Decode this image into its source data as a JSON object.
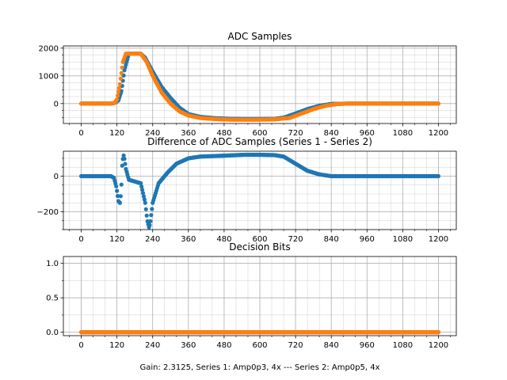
{
  "figure": {
    "caption": "Gain: 2.3125, Series 1: Amp0p3, 4x --- Series 2: Amp0p5, 4x"
  },
  "colors": {
    "series1": "#1f77b4",
    "series2": "#ff7f0e",
    "grid": "#b0b0b0"
  },
  "chart_data": [
    {
      "type": "scatter",
      "title": "ADC Samples",
      "xlim": [
        -60,
        1260
      ],
      "ylim": [
        -720,
        2080
      ],
      "x_ticks": [
        0,
        120,
        240,
        360,
        480,
        600,
        720,
        840,
        960,
        1080,
        1200
      ],
      "x_minor_step": 40,
      "y_ticks": [
        0,
        1000,
        2000
      ],
      "y_minor_step": 250,
      "grid": true,
      "series": [
        {
          "color": "#1f77b4",
          "x": [
            0,
            100,
            112,
            125,
            135,
            145,
            160,
            200,
            215,
            240,
            270,
            300,
            330,
            360,
            400,
            450,
            500,
            550,
            600,
            650,
            680,
            720,
            760,
            800,
            840,
            900,
            1000,
            1100,
            1200
          ],
          "y": [
            0,
            0,
            20,
            120,
            450,
            1200,
            1800,
            1800,
            1650,
            1150,
            600,
            200,
            -150,
            -380,
            -480,
            -530,
            -550,
            -555,
            -555,
            -550,
            -510,
            -360,
            -200,
            -80,
            -15,
            0,
            0,
            0,
            0
          ]
        },
        {
          "color": "#ff7f0e",
          "x": [
            0,
            100,
            112,
            120,
            130,
            140,
            150,
            200,
            220,
            240,
            270,
            300,
            330,
            360,
            400,
            450,
            500,
            550,
            600,
            650,
            700,
            740,
            780,
            820,
            860,
            900,
            1000,
            1100,
            1200
          ],
          "y": [
            0,
            0,
            20,
            150,
            700,
            1500,
            1800,
            1800,
            1500,
            1000,
            400,
            0,
            -280,
            -430,
            -520,
            -560,
            -580,
            -580,
            -580,
            -570,
            -520,
            -360,
            -200,
            -80,
            -15,
            0,
            0,
            0,
            0
          ]
        }
      ]
    },
    {
      "type": "scatter",
      "title": "Difference of ADC Samples (Series 1 - Series 2)",
      "xlim": [
        -60,
        1260
      ],
      "ylim": [
        -300,
        140
      ],
      "x_ticks": [
        0,
        120,
        240,
        360,
        480,
        600,
        720,
        840,
        960,
        1080,
        1200
      ],
      "x_minor_step": 40,
      "y_ticks": [
        -200,
        0
      ],
      "y_minor_step": 50,
      "grid": true,
      "series": [
        {
          "color": "#1f77b4",
          "x": [
            0,
            100,
            110,
            118,
            125,
            130,
            134,
            138,
            143,
            150,
            160,
            180,
            200,
            215,
            222,
            228,
            232,
            240,
            260,
            290,
            320,
            360,
            400,
            480,
            550,
            600,
            650,
            680,
            720,
            760,
            800,
            840,
            900,
            1000,
            1100,
            1200
          ],
          "y": [
            0,
            0,
            -10,
            -60,
            -140,
            -150,
            -90,
            80,
            120,
            40,
            -20,
            -30,
            -40,
            -150,
            -250,
            -290,
            -260,
            -150,
            -40,
            20,
            70,
            100,
            110,
            115,
            120,
            120,
            118,
            110,
            70,
            30,
            10,
            0,
            0,
            0,
            0,
            0
          ]
        }
      ]
    },
    {
      "type": "scatter",
      "title": "Decision Bits",
      "xlim": [
        -60,
        1260
      ],
      "ylim": [
        -0.05,
        1.1
      ],
      "x_ticks": [
        0,
        120,
        240,
        360,
        480,
        600,
        720,
        840,
        960,
        1080,
        1200
      ],
      "x_minor_step": 40,
      "y_ticks": [
        0.0,
        0.5,
        1.0
      ],
      "y_tick_labels": [
        "0.0",
        "0.5",
        "1.0"
      ],
      "y_minor_step": 0.25,
      "grid": true,
      "series": [
        {
          "color": "#1f77b4",
          "x": [
            0,
            1200
          ],
          "y": [
            0,
            0
          ]
        },
        {
          "color": "#ff7f0e",
          "x": [
            0,
            1200
          ],
          "y": [
            0,
            0
          ]
        }
      ]
    }
  ]
}
